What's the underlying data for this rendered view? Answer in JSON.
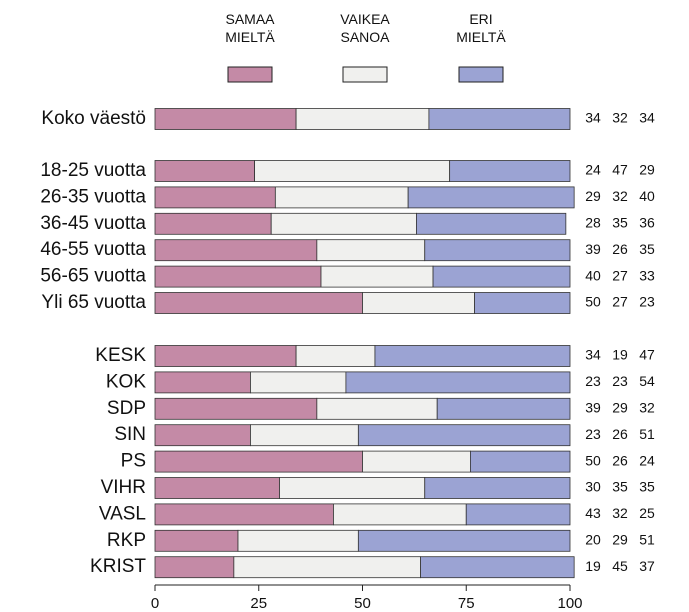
{
  "chart_data": {
    "type": "stacked-barh",
    "categories": [
      "Koko väestö",
      "18-25 vuotta",
      "26-35 vuotta",
      "36-45 vuotta",
      "46-55 vuotta",
      "56-65 vuotta",
      "Yli 65 vuotta",
      "KESK",
      "KOK",
      "SDP",
      "SIN",
      "PS",
      "VIHR",
      "VASL",
      "RKP",
      "KRIST"
    ],
    "series": [
      {
        "name": "SAMAA MIELTÄ",
        "color": "#c48aa6",
        "values": [
          34,
          24,
          29,
          28,
          39,
          40,
          50,
          34,
          23,
          39,
          23,
          50,
          30,
          43,
          20,
          19
        ]
      },
      {
        "name": "VAIKEA SANOA",
        "color": "#f0f0ee",
        "values": [
          32,
          47,
          32,
          35,
          26,
          27,
          27,
          19,
          23,
          29,
          26,
          26,
          35,
          32,
          29,
          45
        ]
      },
      {
        "name": "ERI MIELTÄ",
        "color": "#9ba3d3",
        "values": [
          34,
          29,
          40,
          36,
          35,
          33,
          23,
          47,
          54,
          32,
          51,
          24,
          35,
          25,
          51,
          37
        ]
      }
    ],
    "xlim": [
      0,
      100
    ],
    "xticks": [
      0,
      25,
      50,
      75,
      100
    ]
  }
}
